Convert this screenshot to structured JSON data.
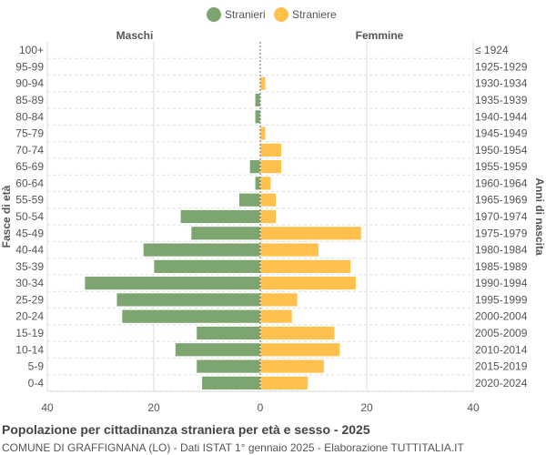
{
  "chart_data": {
    "type": "bar",
    "orientation": "horizontal-pyramid",
    "title": "Popolazione per cittadinanza straniera per età e sesso - 2025",
    "subtitle": "COMUNE DI GRAFFIGNANA (LO) - Dati ISTAT 1° gennaio 2025 - Elaborazione TUTTITALIA.IT",
    "left_header": "Maschi",
    "right_header": "Femmine",
    "ylabel_left": "Fasce di età",
    "ylabel_right": "Anni di nascita",
    "xlim": [
      -40,
      40
    ],
    "xticks": [
      "40",
      "20",
      "0",
      "20",
      "40"
    ],
    "grid": true,
    "legend_position": "top",
    "categories": [
      "100+",
      "95-99",
      "90-94",
      "85-89",
      "80-84",
      "75-79",
      "70-74",
      "65-69",
      "60-64",
      "55-59",
      "50-54",
      "45-49",
      "40-44",
      "35-39",
      "30-34",
      "25-29",
      "20-24",
      "15-19",
      "10-14",
      "5-9",
      "0-4"
    ],
    "birth_years": [
      "≤ 1924",
      "1925-1929",
      "1930-1934",
      "1935-1939",
      "1940-1944",
      "1945-1949",
      "1950-1954",
      "1955-1959",
      "1960-1964",
      "1965-1969",
      "1970-1974",
      "1975-1979",
      "1980-1984",
      "1985-1989",
      "1990-1994",
      "1995-1999",
      "2000-2004",
      "2005-2009",
      "2010-2014",
      "2015-2019",
      "2020-2024"
    ],
    "series": [
      {
        "name": "Stranieri",
        "color": "#7da56f",
        "values": [
          0,
          0,
          0,
          1,
          1,
          0,
          0,
          2,
          1,
          4,
          15,
          13,
          22,
          20,
          33,
          27,
          26,
          12,
          16,
          12,
          11
        ]
      },
      {
        "name": "Straniere",
        "color": "#ffc04d",
        "values": [
          0,
          0,
          1,
          0,
          0,
          1,
          4,
          4,
          2,
          3,
          3,
          19,
          11,
          17,
          18,
          7,
          6,
          14,
          15,
          12,
          9
        ]
      }
    ]
  }
}
